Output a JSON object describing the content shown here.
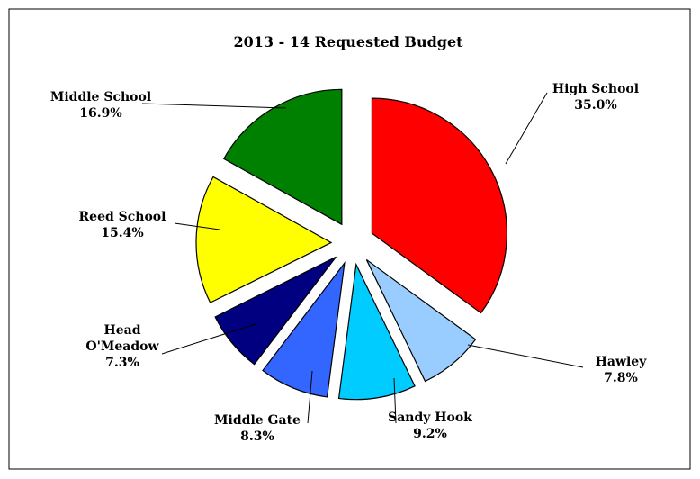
{
  "chart_data": {
    "type": "pie",
    "title": "2013 - 14 Requested Budget",
    "exploded": true,
    "legend": "none",
    "slices": [
      {
        "label": [
          "High School"
        ],
        "percent_label": "35.0%",
        "value": 35.0,
        "color": "#ff0000"
      },
      {
        "label": [
          "Hawley"
        ],
        "percent_label": "7.8%",
        "value": 7.8,
        "color": "#99ccff"
      },
      {
        "label": [
          "Sandy Hook"
        ],
        "percent_label": "9.2%",
        "value": 9.2,
        "color": "#00ccff"
      },
      {
        "label": [
          "Middle Gate"
        ],
        "percent_label": "8.3%",
        "value": 8.3,
        "color": "#3366ff"
      },
      {
        "label": [
          "Head",
          "O'Meadow"
        ],
        "percent_label": "7.3%",
        "value": 7.3,
        "color": "#000080"
      },
      {
        "label": [
          "Reed School"
        ],
        "percent_label": "15.4%",
        "value": 15.4,
        "color": "#ffff00"
      },
      {
        "label": [
          "Middle School"
        ],
        "percent_label": "16.9%",
        "value": 16.9,
        "color": "#008000"
      }
    ]
  }
}
